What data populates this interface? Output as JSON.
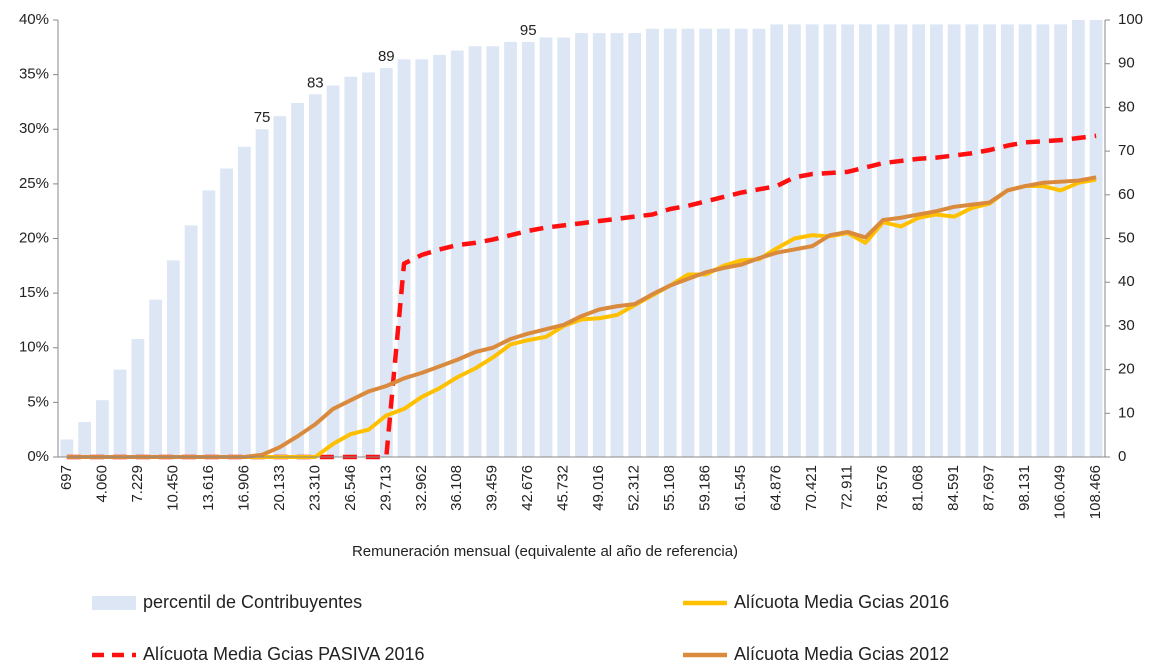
{
  "chart_data": {
    "type": "combo",
    "x_label": "Remuneración mensual (equivalente al año de referencia)",
    "categories": [
      "697",
      null,
      "4.060",
      null,
      "7.229",
      null,
      "10.450",
      null,
      "13.616",
      null,
      "16.906",
      null,
      "20.133",
      null,
      "23.310",
      null,
      "26.546",
      null,
      "29.713",
      null,
      "32.962",
      null,
      "36.108",
      null,
      "39.459",
      null,
      "42.676",
      null,
      "45.732",
      null,
      "49.016",
      null,
      "52.312",
      null,
      "55.108",
      null,
      "59.186",
      null,
      "61.545",
      null,
      "64.876",
      null,
      "70.421",
      null,
      "72.911",
      null,
      "78.576",
      null,
      "81.068",
      null,
      "84.591",
      null,
      "87.697",
      null,
      "98.131",
      null,
      "106.049",
      null,
      "108.466"
    ],
    "ylim": [
      0,
      40
    ],
    "yticks": [
      {
        "value": 0,
        "label": "0%"
      },
      {
        "value": 5,
        "label": "5%"
      },
      {
        "value": 10,
        "label": "10%"
      },
      {
        "value": 15,
        "label": "15%"
      },
      {
        "value": 20,
        "label": "20%"
      },
      {
        "value": 25,
        "label": "25%"
      },
      {
        "value": 30,
        "label": "30%"
      },
      {
        "value": 35,
        "label": "35%"
      },
      {
        "value": 40,
        "label": "40%"
      }
    ],
    "y2lim": [
      0,
      100
    ],
    "y2ticks": [
      0,
      10,
      20,
      30,
      40,
      50,
      60,
      70,
      80,
      90,
      100
    ],
    "series": [
      {
        "name": "percentil de Contribuyentes",
        "type": "bar",
        "axis": "y2",
        "color": "#dce6f4",
        "values": [
          4,
          8,
          13,
          20,
          27,
          36,
          45,
          53,
          61,
          66,
          71,
          75,
          78,
          81,
          83,
          85,
          87,
          88,
          89,
          91,
          91,
          92,
          93,
          94,
          94,
          95,
          95,
          96,
          96,
          97,
          97,
          97,
          97,
          98,
          98,
          98,
          98,
          98,
          98,
          98,
          99,
          99,
          99,
          99,
          99,
          99,
          99,
          99,
          99,
          99,
          99,
          99,
          99,
          99,
          99,
          99,
          99,
          100,
          100
        ],
        "value_labels": [
          null,
          null,
          null,
          null,
          null,
          null,
          null,
          null,
          null,
          null,
          null,
          "75",
          null,
          null,
          "83",
          null,
          null,
          null,
          "89",
          null,
          null,
          null,
          null,
          null,
          null,
          null,
          "95",
          null,
          null,
          null,
          null,
          null,
          null,
          null,
          null,
          null,
          null,
          null,
          null,
          null,
          null,
          null,
          null,
          null,
          null,
          null,
          null,
          null,
          null,
          null,
          null,
          null,
          null,
          null,
          null,
          null,
          null,
          null,
          null
        ]
      },
      {
        "name": "Alícuota Media Gcias 2016",
        "type": "line",
        "color": "#ffc000",
        "values": [
          0,
          0,
          0,
          0,
          0,
          0,
          0,
          0,
          0,
          0,
          0,
          0,
          0,
          0,
          0,
          1.2,
          2.1,
          2.5,
          3.8,
          4.4,
          5.5,
          6.3,
          7.3,
          8.1,
          9.1,
          10.3,
          10.7,
          11,
          12,
          12.6,
          12.7,
          13,
          13.9,
          14.8,
          15.7,
          16.7,
          16.7,
          17.5,
          18,
          18.1,
          19.1,
          20,
          20.3,
          20.2,
          20.5,
          19.6,
          21.5,
          21.1,
          21.9,
          22.2,
          22.0,
          22.8,
          23.2,
          24.4,
          24.8,
          24.8,
          24.4,
          25.1,
          25.4
        ]
      },
      {
        "name": "Alícuota Media Gcias PASIVA 2016",
        "type": "line",
        "dashed": true,
        "color": "#ff1010",
        "values": [
          0,
          0,
          0,
          0,
          0,
          0,
          0,
          0,
          0,
          0,
          0,
          0,
          0,
          0,
          0,
          0,
          0,
          0,
          0,
          17.7,
          18.5,
          19,
          19.4,
          19.6,
          19.9,
          20.3,
          20.7,
          21,
          21.2,
          21.4,
          21.6,
          21.8,
          22,
          22.2,
          22.7,
          23,
          23.4,
          23.8,
          24.2,
          24.5,
          24.8,
          25.6,
          25.9,
          26,
          26.1,
          26.5,
          26.9,
          27.1,
          27.3,
          27.4,
          27.6,
          27.8,
          28.1,
          28.5,
          28.8,
          28.9,
          29,
          29.2,
          29.4
        ]
      },
      {
        "name": "Alícuota Media Gcias 2012",
        "type": "line",
        "color": "#d98a3d",
        "values": [
          0,
          0,
          0,
          0,
          0,
          0,
          0,
          0,
          0,
          0,
          0,
          0.2,
          0.9,
          1.9,
          3,
          4.4,
          5.2,
          6,
          6.5,
          7.2,
          7.7,
          8.3,
          8.9,
          9.6,
          10,
          10.8,
          11.3,
          11.7,
          12.1,
          12.9,
          13.5,
          13.8,
          14,
          14.9,
          15.7,
          16.3,
          16.9,
          17.3,
          17.6,
          18.2,
          18.7,
          19,
          19.3,
          20.3,
          20.6,
          20.1,
          21.7,
          21.9,
          22.2,
          22.5,
          22.9,
          23.1,
          23.3,
          24.4,
          24.8,
          25.1,
          25.2,
          25.3,
          25.6
        ]
      }
    ],
    "legend": "bottom"
  }
}
